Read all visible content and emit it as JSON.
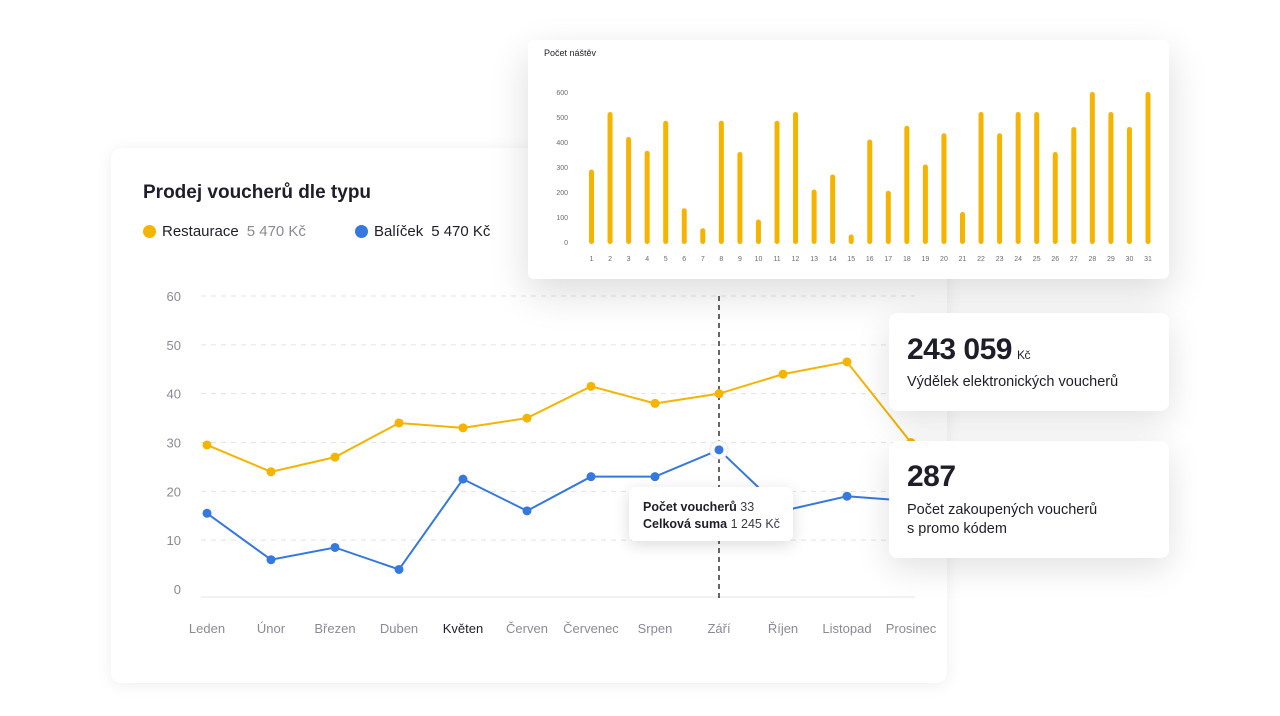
{
  "colors": {
    "restaurace": "#F5B400",
    "balicek": "#3478E0",
    "grid": "#e3e3e8",
    "axis_text": "#8a8a96"
  },
  "chart_data": [
    {
      "type": "line",
      "title": "Prodej voucherů dle typu",
      "categories": [
        "Leden",
        "Únor",
        "Březen",
        "Duben",
        "Květen",
        "Červen",
        "Červenec",
        "Srpen",
        "Září",
        "Říjen",
        "Listopad",
        "Prosinec"
      ],
      "highlighted_category": "Květen",
      "ylim": [
        0,
        60
      ],
      "yticks": [
        0,
        10,
        20,
        30,
        40,
        50,
        60
      ],
      "grid": true,
      "series": [
        {
          "name": "Restaurace",
          "total_label": "5 470 Kč",
          "color": "#F5B400",
          "values": [
            29.5,
            24,
            27,
            34,
            33,
            35,
            41.5,
            38,
            40,
            44,
            46.5,
            30
          ]
        },
        {
          "name": "Balíček",
          "total_label": "5 470 Kč",
          "color": "#3478E0",
          "values": [
            15.5,
            6,
            8.5,
            4,
            22.5,
            16,
            23,
            23,
            28.5,
            16,
            19,
            18
          ]
        }
      ],
      "hover_index": 8,
      "tooltip": {
        "label1": "Počet voucherů",
        "value1": "33",
        "label2": "Celková suma",
        "value2": "1 245 Kč"
      }
    },
    {
      "type": "bar",
      "title": "Počet náštěv",
      "x": [
        "1",
        "2",
        "3",
        "4",
        "5",
        "6",
        "7",
        "8",
        "9",
        "10",
        "11",
        "12",
        "13",
        "14",
        "15",
        "16",
        "17",
        "18",
        "19",
        "20",
        "21",
        "22",
        "23",
        "24",
        "25",
        "26",
        "27",
        "28",
        "29",
        "30",
        "31"
      ],
      "values": [
        290,
        520,
        420,
        365,
        485,
        135,
        55,
        485,
        360,
        90,
        485,
        520,
        210,
        270,
        30,
        410,
        205,
        465,
        310,
        435,
        120,
        520,
        435,
        520,
        520,
        360,
        460,
        600,
        520,
        460,
        600
      ],
      "ylim": [
        0,
        600
      ],
      "yticks": [
        0,
        100,
        200,
        300,
        400,
        500,
        600
      ],
      "color": "#F5B400"
    }
  ],
  "stats": [
    {
      "number": "243 059",
      "unit": "Kč",
      "label": "Výdělek elektronických voucherů"
    },
    {
      "number": "287",
      "label_line1": "Počet zakoupených voucherů",
      "label_line2": "s promo kódem"
    }
  ]
}
